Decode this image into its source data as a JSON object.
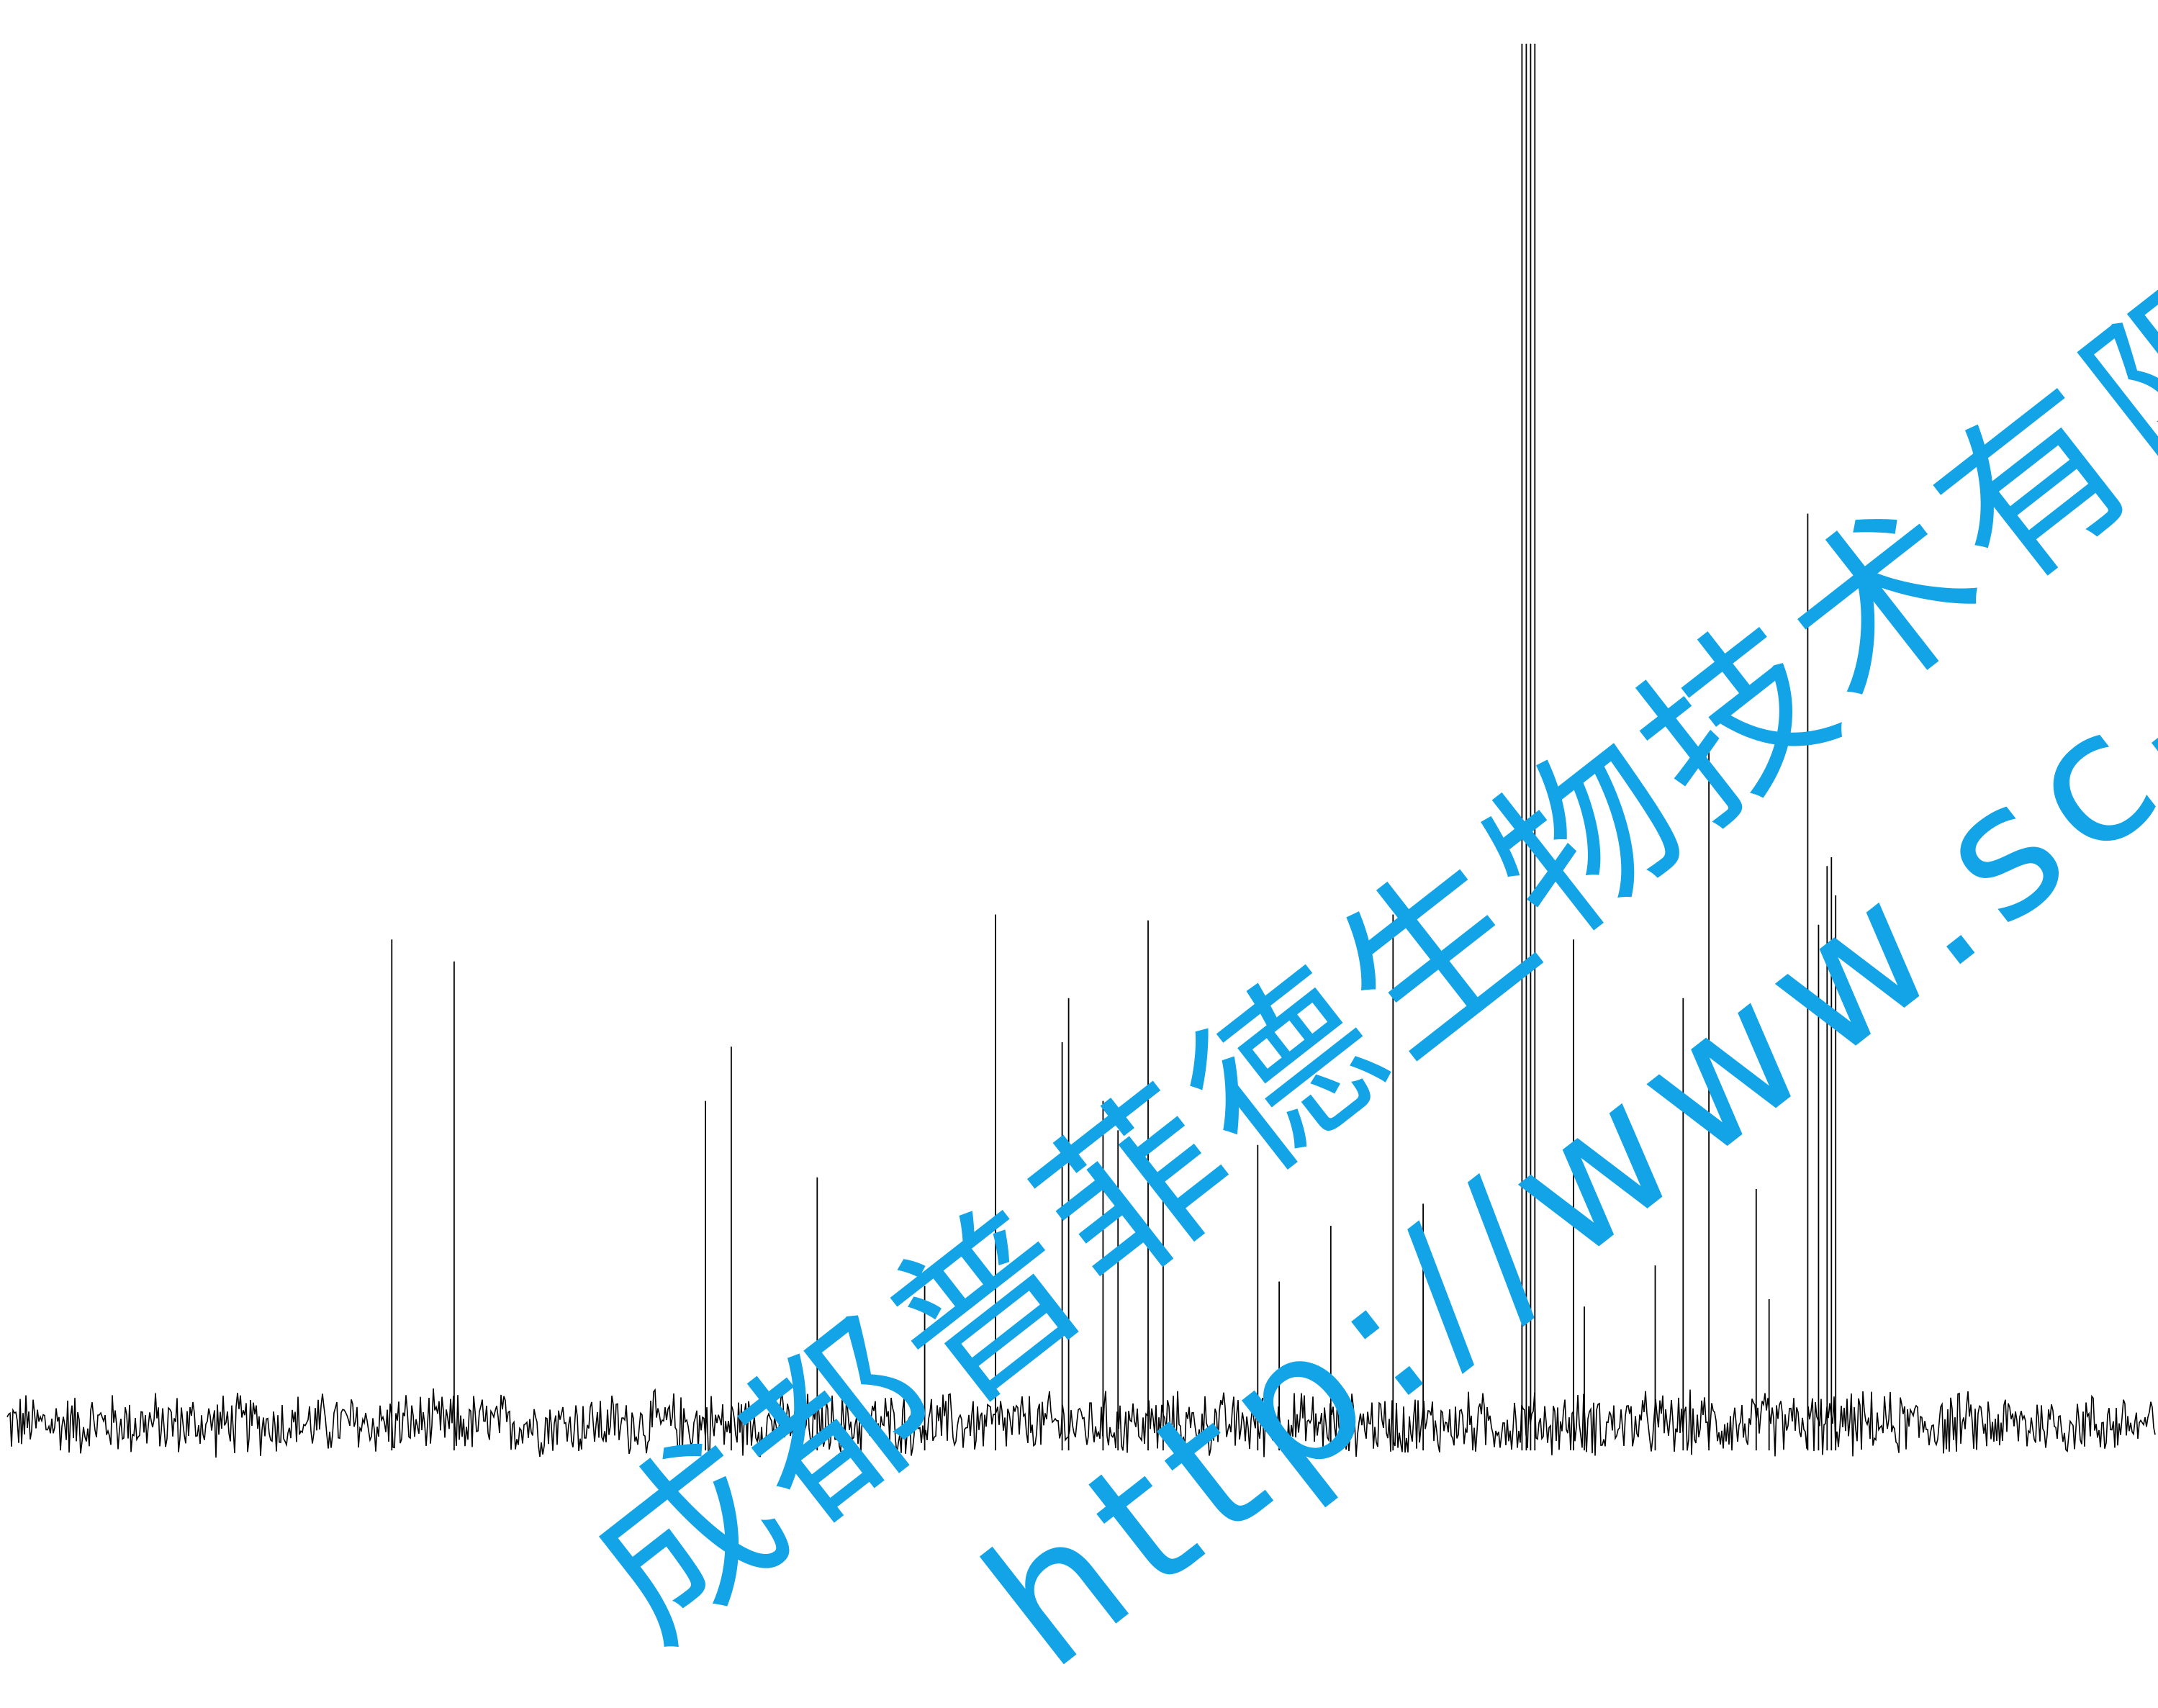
{
  "watermark": {
    "company": "成都普菲德生物技术有限",
    "url": "http://www.sc-victo",
    "color": "#12a4e6"
  },
  "chart_data": {
    "type": "line",
    "title": "",
    "xlabel": "",
    "ylabel": "",
    "xlim": [
      0,
      1
    ],
    "ylim": [
      0,
      1
    ],
    "grid": false,
    "line_color": "#000000",
    "baseline": 0.04,
    "noise_amplitude": 0.018,
    "x_reversed": false,
    "peaks": [
      {
        "x": 0.179,
        "height": 0.37
      },
      {
        "x": 0.208,
        "height": 0.355
      },
      {
        "x": 0.325,
        "height": 0.26
      },
      {
        "x": 0.337,
        "height": 0.297
      },
      {
        "x": 0.377,
        "height": 0.208
      },
      {
        "x": 0.427,
        "height": 0.134
      },
      {
        "x": 0.46,
        "height": 0.387
      },
      {
        "x": 0.491,
        "height": 0.3
      },
      {
        "x": 0.494,
        "height": 0.33
      },
      {
        "x": 0.51,
        "height": 0.26
      },
      {
        "x": 0.517,
        "height": 0.24
      },
      {
        "x": 0.531,
        "height": 0.383
      },
      {
        "x": 0.538,
        "height": 0.207
      },
      {
        "x": 0.582,
        "height": 0.23
      },
      {
        "x": 0.592,
        "height": 0.137
      },
      {
        "x": 0.616,
        "height": 0.175
      },
      {
        "x": 0.645,
        "height": 0.387
      },
      {
        "x": 0.659,
        "height": 0.19
      },
      {
        "x": 0.705,
        "height": 0.98
      },
      {
        "x": 0.707,
        "height": 0.98
      },
      {
        "x": 0.709,
        "height": 0.98
      },
      {
        "x": 0.711,
        "height": 0.98
      },
      {
        "x": 0.729,
        "height": 0.37
      },
      {
        "x": 0.734,
        "height": 0.12
      },
      {
        "x": 0.767,
        "height": 0.148
      },
      {
        "x": 0.78,
        "height": 0.33
      },
      {
        "x": 0.792,
        "height": 0.51
      },
      {
        "x": 0.814,
        "height": 0.2
      },
      {
        "x": 0.82,
        "height": 0.125
      },
      {
        "x": 0.838,
        "height": 0.66
      },
      {
        "x": 0.843,
        "height": 0.38
      },
      {
        "x": 0.847,
        "height": 0.42
      },
      {
        "x": 0.849,
        "height": 0.426
      },
      {
        "x": 0.851,
        "height": 0.4
      }
    ]
  }
}
